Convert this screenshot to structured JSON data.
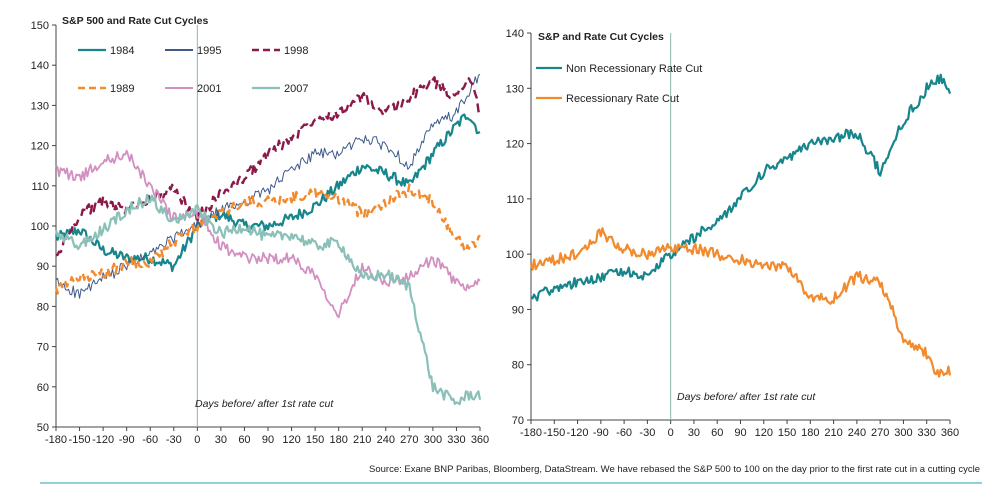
{
  "chart_data": [
    {
      "type": "line",
      "title": "S&P 500 and Rate Cut Cycles",
      "xlabel": "Days before/ after 1st rate cut",
      "ylabel": "",
      "xlim": [
        -180,
        360
      ],
      "ylim": [
        50,
        150
      ],
      "xticks": [
        "-180",
        "-150",
        "-120",
        "-90",
        "-60",
        "-30",
        "0",
        "30",
        "60",
        "90",
        "120",
        "150",
        "180",
        "210",
        "240",
        "270",
        "300",
        "330",
        "360"
      ],
      "yticks": [
        "50",
        "60",
        "70",
        "80",
        "90",
        "100",
        "110",
        "120",
        "130",
        "140",
        "150"
      ],
      "vline_x": 0,
      "legend_position": "top-left",
      "series": [
        {
          "name": "1984",
          "color": "#17858c",
          "style": "solid",
          "width": 2.2,
          "x": [
            -180,
            -150,
            -120,
            -90,
            -60,
            -30,
            0,
            30,
            60,
            90,
            120,
            150,
            180,
            210,
            240,
            270,
            300,
            330,
            345,
            360
          ],
          "y": [
            97,
            99,
            94,
            92,
            92,
            90,
            100,
            103,
            100,
            100,
            102,
            105,
            110,
            115,
            113,
            110,
            118,
            125,
            128,
            123
          ]
        },
        {
          "name": "1995",
          "color": "#3d5a8a",
          "style": "solid",
          "width": 1,
          "x": [
            -180,
            -150,
            -120,
            -90,
            -60,
            -30,
            0,
            30,
            60,
            90,
            120,
            150,
            180,
            210,
            240,
            270,
            300,
            330,
            345,
            360
          ],
          "y": [
            86,
            83,
            87,
            90,
            93,
            97,
            100,
            104,
            106,
            109,
            114,
            118,
            118,
            122,
            120,
            115,
            125,
            128,
            133,
            138
          ]
        },
        {
          "name": "1998",
          "color": "#8b1a4a",
          "style": "dashed",
          "width": 2.4,
          "x": [
            -180,
            -150,
            -120,
            -90,
            -60,
            -30,
            0,
            30,
            60,
            90,
            120,
            150,
            180,
            210,
            240,
            270,
            300,
            330,
            345,
            360
          ],
          "y": [
            92,
            103,
            106,
            104,
            107,
            109,
            102,
            108,
            112,
            118,
            122,
            127,
            128,
            132,
            128,
            132,
            136,
            132,
            138,
            128
          ]
        },
        {
          "name": "1989",
          "color": "#f28a2e",
          "style": "dashed",
          "width": 2.4,
          "x": [
            -180,
            -150,
            -120,
            -90,
            -60,
            -30,
            0,
            30,
            60,
            90,
            120,
            150,
            180,
            210,
            240,
            270,
            300,
            330,
            345,
            360
          ],
          "y": [
            84,
            87,
            88,
            91,
            91,
            96,
            100,
            103,
            106,
            106,
            107,
            108,
            107,
            103,
            106,
            109,
            106,
            97,
            94,
            97
          ]
        },
        {
          "name": "2001",
          "color": "#d290c0",
          "style": "solid",
          "width": 1.8,
          "x": [
            -180,
            -150,
            -120,
            -90,
            -60,
            -30,
            0,
            30,
            60,
            90,
            120,
            150,
            180,
            210,
            240,
            270,
            300,
            330,
            345,
            360
          ],
          "y": [
            114,
            112,
            116,
            118,
            110,
            102,
            103,
            95,
            92,
            92,
            92,
            88,
            78,
            90,
            86,
            87,
            92,
            86,
            84,
            86
          ]
        },
        {
          "name": "2007",
          "color": "#8ac0b8",
          "style": "solid",
          "width": 2.2,
          "x": [
            -180,
            -150,
            -120,
            -90,
            -60,
            -30,
            0,
            30,
            60,
            90,
            120,
            150,
            180,
            210,
            240,
            270,
            300,
            330,
            345,
            360
          ],
          "y": [
            98,
            95,
            99,
            104,
            107,
            101,
            104,
            98,
            100,
            97,
            98,
            95,
            96,
            87,
            88,
            85,
            60,
            56,
            58,
            58
          ]
        }
      ]
    },
    {
      "type": "line",
      "title": "S&P and Rate Cut Cycles",
      "xlabel": "Days before/ after 1st rate cut",
      "ylabel": "",
      "xlim": [
        -180,
        360
      ],
      "ylim": [
        70,
        140
      ],
      "xticks": [
        "-180",
        "-150",
        "-120",
        "-90",
        "-60",
        "-30",
        "0",
        "30",
        "60",
        "90",
        "120",
        "150",
        "180",
        "210",
        "240",
        "270",
        "300",
        "330",
        "360"
      ],
      "yticks": [
        "70",
        "80",
        "90",
        "100",
        "110",
        "120",
        "130",
        "140"
      ],
      "vline_x": 0,
      "legend_position": "top-left",
      "series": [
        {
          "name": "Non Recessionary Rate Cut",
          "color": "#17858c",
          "style": "solid",
          "width": 2.2,
          "x": [
            -180,
            -150,
            -120,
            -90,
            -60,
            -30,
            0,
            30,
            60,
            90,
            120,
            150,
            180,
            210,
            240,
            270,
            300,
            330,
            345,
            360
          ],
          "y": [
            92,
            94,
            95,
            96,
            97,
            96,
            100,
            103,
            106,
            110,
            115,
            117,
            120,
            121,
            122,
            115,
            124,
            130,
            132,
            130
          ]
        },
        {
          "name": "Recessionary Rate Cut",
          "color": "#f28a2e",
          "style": "solid",
          "width": 2.2,
          "x": [
            -180,
            -150,
            -120,
            -90,
            -60,
            -30,
            0,
            30,
            60,
            90,
            120,
            150,
            180,
            210,
            240,
            270,
            300,
            330,
            345,
            360
          ],
          "y": [
            98,
            99,
            100,
            104,
            101,
            100,
            101,
            101,
            100,
            99,
            98,
            98,
            92,
            92,
            96,
            95,
            85,
            82,
            78,
            79
          ]
        }
      ]
    }
  ],
  "source": "Source: Exane BNP Paribas, Bloomberg, DataStream. We have rebased the S&P 500 to 100 on the day prior to the first rate cut in a cutting cycle",
  "colors": {
    "footer_line": "#4db6c8",
    "zero_line": "#8ab8b0"
  }
}
